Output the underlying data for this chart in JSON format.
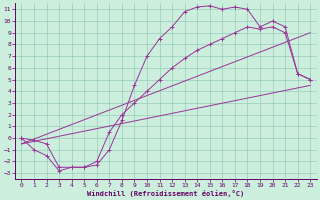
{
  "xlabel": "Windchill (Refroidissement éolien,°C)",
  "bg_color": "#cceedd",
  "grid_color": "#99ccbb",
  "line_color": "#993399",
  "xlim": [
    -0.5,
    23.5
  ],
  "ylim": [
    -3.5,
    11.5
  ],
  "xticks": [
    0,
    1,
    2,
    3,
    4,
    5,
    6,
    7,
    8,
    9,
    10,
    11,
    12,
    13,
    14,
    15,
    16,
    17,
    18,
    19,
    20,
    21,
    22,
    23
  ],
  "yticks": [
    -3,
    -2,
    -1,
    0,
    1,
    2,
    3,
    4,
    5,
    6,
    7,
    8,
    9,
    10,
    11
  ],
  "curve1_x": [
    0,
    1,
    2,
    3,
    4,
    5,
    6,
    7,
    8,
    9,
    10,
    11,
    12,
    13,
    14,
    15,
    16,
    17,
    18,
    19,
    20,
    21,
    22,
    23
  ],
  "curve1_y": [
    0,
    -1,
    -1.5,
    -2.8,
    -2.5,
    -2.5,
    -2.3,
    -1.0,
    1.5,
    4.5,
    7.0,
    8.5,
    9.5,
    10.8,
    11.2,
    11.3,
    11.0,
    11.2,
    11.0,
    9.5,
    10.0,
    9.5,
    5.5,
    5.0
  ],
  "curve2_x": [
    0,
    1,
    2,
    3,
    4,
    5,
    6,
    7,
    8,
    9,
    10,
    11,
    12,
    13,
    14,
    15,
    16,
    17,
    18,
    19,
    20,
    21,
    22,
    23
  ],
  "curve2_y": [
    0,
    -0.2,
    -0.5,
    -2.5,
    -2.5,
    -2.5,
    -2.0,
    0.5,
    2.0,
    3.0,
    4.0,
    5.0,
    6.0,
    6.8,
    7.5,
    8.0,
    8.5,
    9.0,
    9.5,
    9.3,
    9.5,
    9.0,
    5.5,
    5.0
  ],
  "line1_x": [
    0,
    23
  ],
  "line1_y": [
    -0.5,
    4.5
  ],
  "line2_x": [
    0,
    23
  ],
  "line2_y": [
    -0.5,
    9.0
  ]
}
